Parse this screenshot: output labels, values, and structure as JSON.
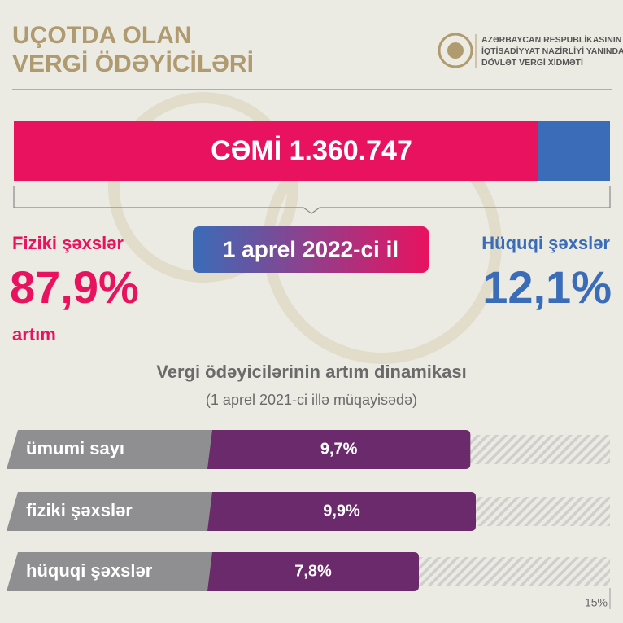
{
  "header": {
    "title_lines": [
      "UÇOTDA OLAN",
      "VERGİ ÖDƏYİCİLƏRİ"
    ],
    "org_lines": [
      "AZƏRBAYCAN RESPUBLİKASININ",
      "İQTİSADİYYAT NAZİRLİYİ YANINDA",
      "DÖVLƏT VERGİ XİDMƏTİ"
    ]
  },
  "chart_data": [
    {
      "type": "stacked-bar",
      "title": "CƏMİ 1.360.747",
      "subtitle": "1 aprel 2022-ci il",
      "note": "artım",
      "xlim": [
        0,
        100
      ],
      "series": [
        {
          "name": "Fiziki şəxslər",
          "color": "#e8125f",
          "values": [
            87.9
          ],
          "value_labels": [
            "87,9%"
          ]
        },
        {
          "name": "Hüquqi şəxslər",
          "color": "#3a6cb8",
          "values": [
            12.1
          ],
          "value_labels": [
            "12,1%"
          ]
        }
      ]
    },
    {
      "type": "hbar",
      "title": "Vergi ödəyicilərinin artım dinamikası",
      "subtitle": "(1 aprel 2021-ci illə müqayisədə)",
      "categories": [
        "ümumi sayı",
        "fiziki şəxslər",
        "hüquqi şəxslər"
      ],
      "values": [
        9.7,
        9.9,
        7.8
      ],
      "value_labels": [
        "9,7%",
        "9,9%",
        "7,8%"
      ],
      "color": "#6b2a6b",
      "xlim": [
        0,
        15
      ],
      "xticks": [
        {
          "value": 15,
          "label": "15%"
        }
      ]
    }
  ]
}
